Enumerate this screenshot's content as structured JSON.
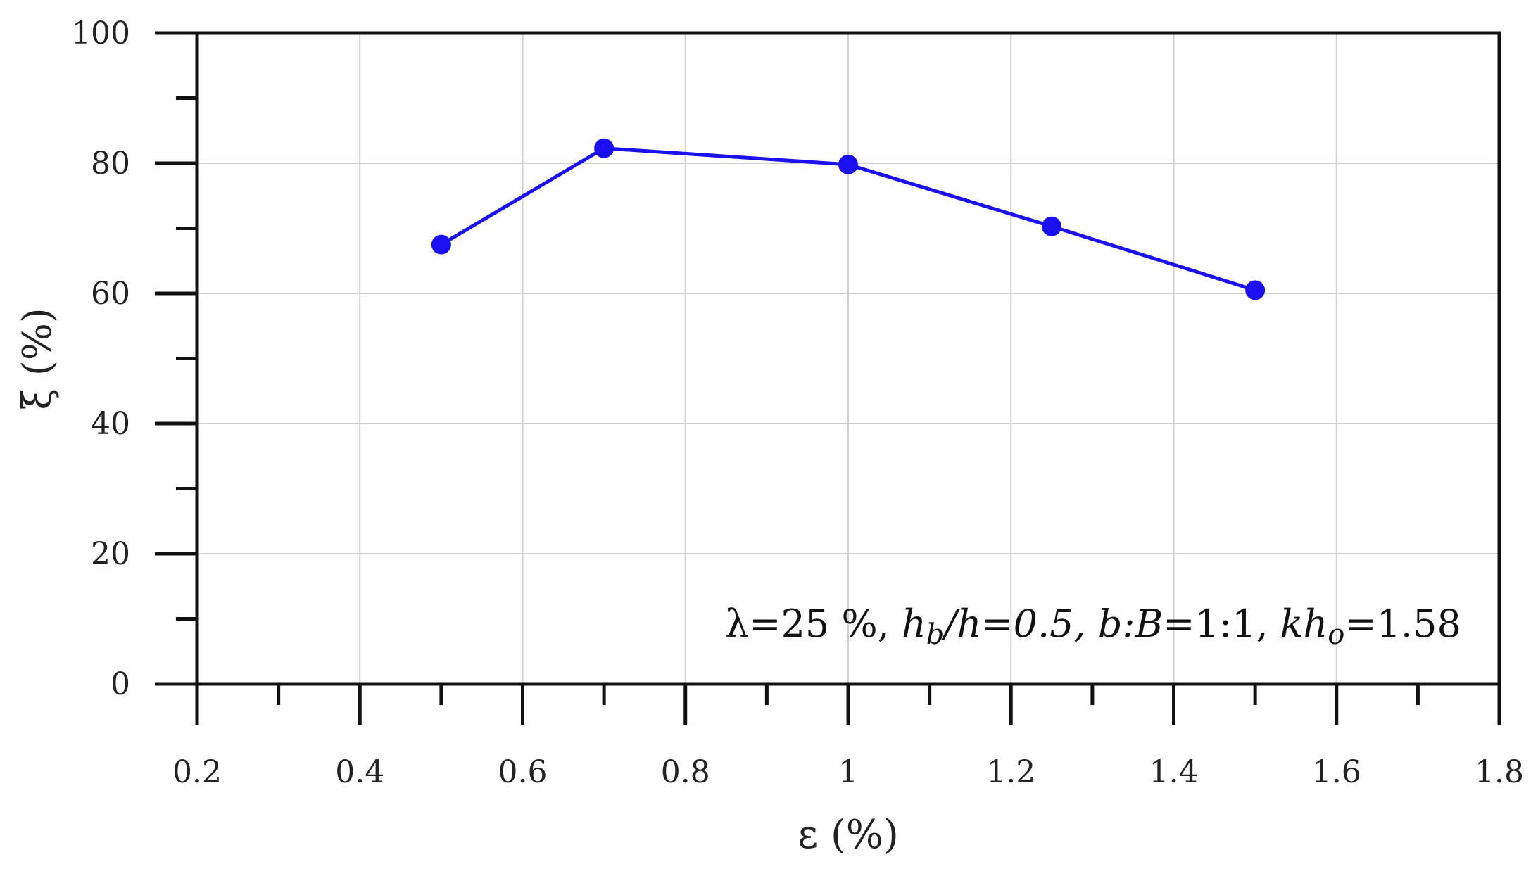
{
  "chart_data": {
    "type": "line",
    "xlabel": "ε (%)",
    "ylabel": "ξ (%)",
    "xlim": [
      0.2,
      1.8
    ],
    "ylim": [
      0,
      100
    ],
    "x_ticks": [
      "0.2",
      "0.4",
      "0.6",
      "0.8",
      "1",
      "1.2",
      "1.4",
      "1.6",
      "1.8"
    ],
    "y_ticks": [
      "0",
      "20",
      "40",
      "60",
      "80",
      "100"
    ],
    "grid": true,
    "series": [
      {
        "color": "#1a10f0",
        "x": [
          0.5,
          0.7,
          1.0,
          1.25,
          1.5
        ],
        "y": [
          67.5,
          82.3,
          79.8,
          70.3,
          60.5
        ]
      }
    ],
    "annotation": {
      "lambda": "λ=25 %, ",
      "hb": "h",
      "hb_sub": "b",
      "hh": "/h=0.5, ",
      "b": "b",
      "B": ":B",
      "ratio": "=1:1, ",
      "kh": "kh",
      "kh_sub": "o",
      "kh_val": "=1.58"
    }
  }
}
